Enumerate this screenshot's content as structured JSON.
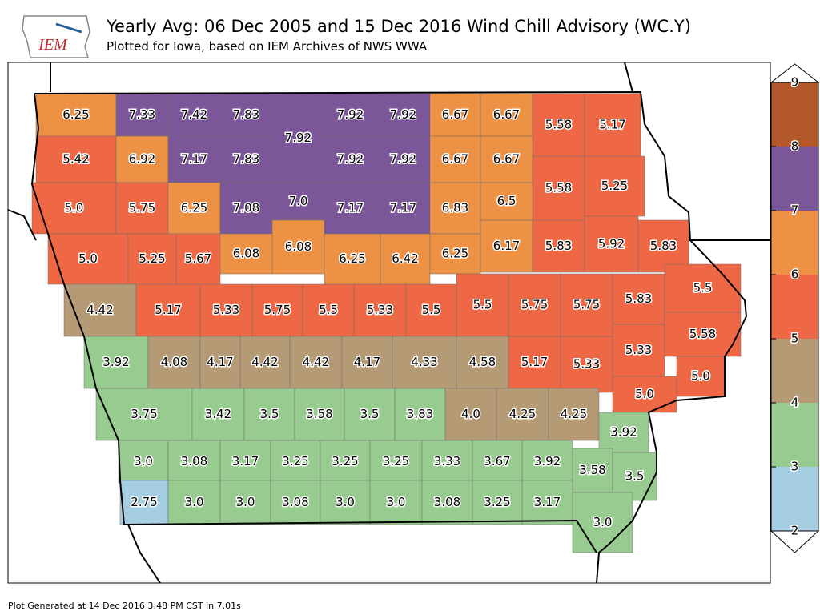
{
  "logo": "IEM",
  "title": "Yearly Avg: 06 Dec 2005 and 15 Dec 2016 Wind Chill Advisory (WC.Y)",
  "subtitle": "Plotted for Iowa, based on IEM Archives of NWS WWA",
  "footer": "Plot Generated at 14 Dec 2016 3:48 PM CST in 7.01s",
  "colorbar": {
    "levels": [
      2,
      3,
      4,
      5,
      6,
      7,
      8,
      9
    ],
    "colors": [
      "#a6cee3",
      "#98cb8f",
      "#b59a76",
      "#ee6845",
      "#ed9145",
      "#7b5699",
      "#b2582a"
    ]
  },
  "counties": {
    "values": [
      6.25,
      7.33,
      7.42,
      7.83,
      7.92,
      7.92,
      7.92,
      6.67,
      6.67,
      5.58,
      5.17,
      5.42,
      6.92,
      7.17,
      7.83,
      7.92,
      7.92,
      6.67,
      6.67,
      5.58,
      5.25,
      5.0,
      5.75,
      6.25,
      7.08,
      7.0,
      7.17,
      7.17,
      6.83,
      6.5,
      5.0,
      5.25,
      5.67,
      6.08,
      6.08,
      6.25,
      6.42,
      6.25,
      6.17,
      5.83,
      5.92,
      5.83,
      4.42,
      5.17,
      5.33,
      5.75,
      5.5,
      5.33,
      5.5,
      5.5,
      5.75,
      5.75,
      5.83,
      5.5,
      3.92,
      4.08,
      4.17,
      4.42,
      4.42,
      4.17,
      4.33,
      4.58,
      5.17,
      5.33,
      5.33,
      5.58,
      5.0,
      5.0,
      3.75,
      3.42,
      3.5,
      3.58,
      3.5,
      3.83,
      4.0,
      4.25,
      4.25,
      3.92,
      3.0,
      3.08,
      3.17,
      3.25,
      3.25,
      3.25,
      3.33,
      3.67,
      3.92,
      3.58,
      3.5,
      2.75,
      3.0,
      3.0,
      3.08,
      3.0,
      3.0,
      3.08,
      3.25,
      3.17,
      3.0
    ],
    "value_labels": [
      "6.25",
      "7.33",
      "7.42",
      "7.83",
      "7.92",
      "7.92",
      "7.92",
      "6.67",
      "6.67",
      "5.58",
      "5.17",
      "5.42",
      "6.92",
      "7.17",
      "7.83",
      "7.92",
      "7.92",
      "6.67",
      "6.67",
      "5.58",
      "5.25",
      "5.0",
      "5.75",
      "6.25",
      "7.08",
      "7.0",
      "7.17",
      "7.17",
      "6.83",
      "6.5",
      "5.0",
      "5.25",
      "5.67",
      "6.08",
      "6.08",
      "6.25",
      "6.42",
      "6.25",
      "6.17",
      "5.83",
      "5.92",
      "5.83",
      "4.42",
      "5.17",
      "5.33",
      "5.75",
      "5.5",
      "5.33",
      "5.5",
      "5.5",
      "5.75",
      "5.75",
      "5.83",
      "5.5",
      "3.92",
      "4.08",
      "4.17",
      "4.42",
      "4.42",
      "4.17",
      "4.33",
      "4.58",
      "5.17",
      "5.33",
      "5.33",
      "5.58",
      "5.0",
      "5.0",
      "3.75",
      "3.42",
      "3.5",
      "3.58",
      "3.5",
      "3.83",
      "4.0",
      "4.25",
      "4.25",
      "3.92",
      "3.0",
      "3.08",
      "3.17",
      "3.25",
      "3.25",
      "3.25",
      "3.33",
      "3.67",
      "3.92",
      "3.58",
      "3.5",
      "2.75",
      "3.0",
      "3.0",
      "3.08",
      "3.0",
      "3.0",
      "3.08",
      "3.25",
      "3.17",
      "3.0"
    ]
  }
}
